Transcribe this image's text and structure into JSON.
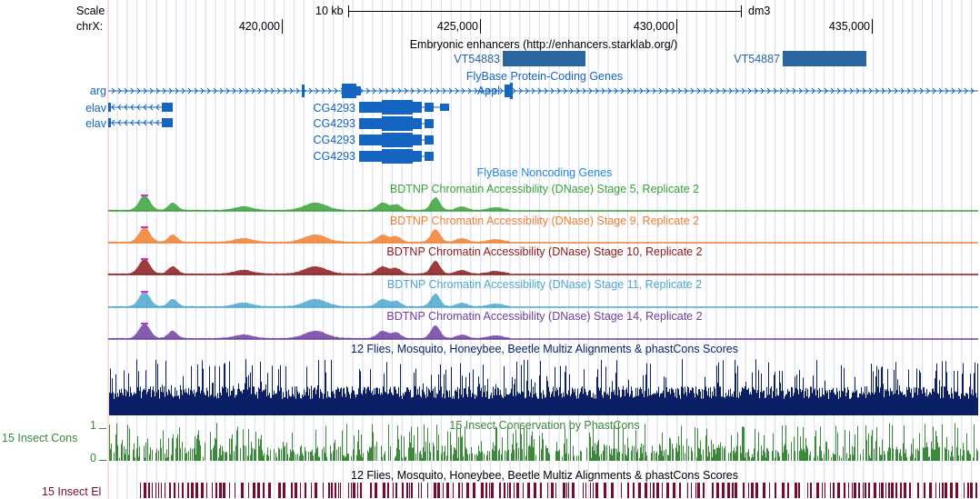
{
  "ruler": {
    "scale_label": "Scale",
    "chrom_label": "chrX:",
    "scale_bar_label": "10 kb",
    "assembly": "dm3",
    "ticks": [
      "420,000",
      "425,000",
      "430,000",
      "435,000"
    ]
  },
  "enhancers": {
    "title": "Embryonic enhancers (http://enhancers.starklab.org/)",
    "items": [
      {
        "name": "VT54883"
      },
      {
        "name": "VT54887"
      }
    ]
  },
  "genes": {
    "title": "FlyBase Protein-Coding Genes",
    "items": [
      {
        "name": "arg"
      },
      {
        "name": "elav"
      },
      {
        "name": "elav"
      },
      {
        "name": "CG4293"
      },
      {
        "name": "CG4293"
      },
      {
        "name": "CG4293"
      },
      {
        "name": "CG4293"
      },
      {
        "name": "Appl"
      }
    ]
  },
  "noncoding": {
    "title": "FlyBase Noncoding Genes"
  },
  "dnase": [
    {
      "title": "BDTNP Chromatin Accessibility (DNase) Stage 5, Replicate 2",
      "color": "#3aa13a"
    },
    {
      "title": "BDTNP Chromatin Accessibility (DNase) Stage 9, Replicate 2",
      "color": "#f08030"
    },
    {
      "title": "BDTNP Chromatin Accessibility (DNase) Stage 10, Replicate 2",
      "color": "#8b1a1a"
    },
    {
      "title": "BDTNP Chromatin Accessibility (DNase) Stage 11, Replicate 2",
      "color": "#4ba8d0"
    },
    {
      "title": "BDTNP Chromatin Accessibility (DNase) Stage 14, Replicate 2",
      "color": "#7040a0"
    }
  ],
  "multiz": {
    "title": "12 Flies, Mosquito, Honeybee, Beetle Multiz Alignments & phastCons Scores",
    "color": "#0b1f66"
  },
  "phastcons": {
    "title": "15 Insect Conservation by PhastCons",
    "side_label": "15 Insect Cons",
    "axis_max": "1",
    "axis_min": "0",
    "color": "#3a8a3a"
  },
  "elements": {
    "title": "12 Flies, Mosquito, Honeybee, Beetle Multiz Alignments & phastCons Scores",
    "side_label": "15 Insect El",
    "color": "#7a0a2a"
  }
}
